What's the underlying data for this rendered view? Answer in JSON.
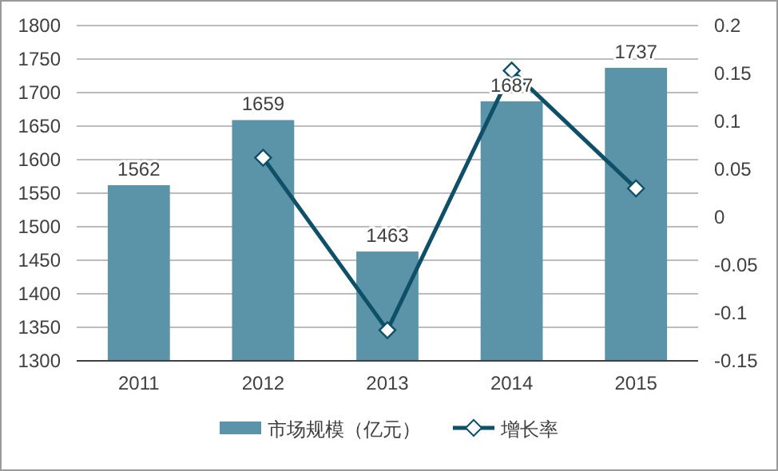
{
  "chart_data": {
    "type": "bar",
    "categories": [
      "2011",
      "2012",
      "2013",
      "2014",
      "2015"
    ],
    "series": [
      {
        "name": "市场规模（亿元）",
        "color": "#5b93a8",
        "values": [
          1562,
          1659,
          1463,
          1687,
          1737
        ],
        "value_labels": [
          "1562",
          "1659",
          "1463",
          "1687",
          "1737"
        ]
      },
      {
        "name": "增长率",
        "type": "line",
        "axis": "y2",
        "color": "#0e5068",
        "marker": "diamond",
        "values": [
          null,
          0.062,
          -0.118,
          0.153,
          0.03
        ]
      }
    ],
    "ylim": [
      1300,
      1800
    ],
    "yticks": [
      1300,
      1350,
      1400,
      1450,
      1500,
      1550,
      1600,
      1650,
      1700,
      1750,
      1800
    ],
    "y2lim": [
      -0.15,
      0.2
    ],
    "y2ticks": [
      -0.15,
      -0.1,
      -0.05,
      0,
      0.05,
      0.1,
      0.15,
      0.2
    ],
    "grid": "y",
    "legend": "bottom"
  }
}
